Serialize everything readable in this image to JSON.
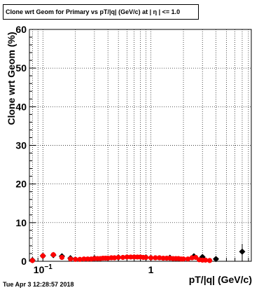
{
  "title": "Clone wrt Geom for Primary vs pT/|q| (GeV/c) at | η | <= 1.0",
  "timestamp": "Tue Apr  3 12:28:57 2018",
  "colors": {
    "series_a": "#000000",
    "series_b": "#ff0000",
    "grid": "#000000"
  },
  "chart_data": {
    "type": "scatter",
    "title": "Clone wrt Geom for Primary vs pT/|q| (GeV/c) at | η | <= 1.0",
    "xlabel": "pT/|q| (GeV/c)",
    "ylabel": "Clone wrt Geom (%)",
    "x_scale": "log",
    "xlim": [
      0.075,
      8.5
    ],
    "ylim": [
      0,
      60
    ],
    "x_ticks": [
      {
        "value": 0.1,
        "base": "10",
        "exp": "−1"
      },
      {
        "value": 1,
        "label": "1"
      }
    ],
    "y_ticks": [
      0,
      10,
      20,
      30,
      40,
      50,
      60
    ],
    "grid": true,
    "series": [
      {
        "color": "#000000",
        "marker": "diamond",
        "points": [
          {
            "x": 0.08,
            "y": 0.3
          },
          {
            "x": 0.1,
            "y": 1.4
          },
          {
            "x": 0.125,
            "y": 1.6
          },
          {
            "x": 0.15,
            "y": 1.3
          },
          {
            "x": 0.18,
            "y": 0.8
          },
          {
            "x": 0.3,
            "y": 0.8
          },
          {
            "x": 0.5,
            "y": 1.0
          },
          {
            "x": 0.9,
            "y": 1.0
          },
          {
            "x": 1.5,
            "y": 0.9
          },
          {
            "x": 2.5,
            "y": 1.3
          },
          {
            "x": 3.0,
            "y": 1.1
          },
          {
            "x": 4.0,
            "y": 0.6
          },
          {
            "x": 7.0,
            "y": 2.5,
            "yerr": 2.0
          }
        ]
      },
      {
        "color": "#ff0000",
        "marker": "circle",
        "points": [
          {
            "x": 0.08,
            "y": 0.2
          },
          {
            "x": 0.1,
            "y": 1.4
          },
          {
            "x": 0.125,
            "y": 1.7
          },
          {
            "x": 0.15,
            "y": 1.0
          },
          {
            "x": 0.18,
            "y": 0.6
          },
          {
            "x": 0.2,
            "y": 0.5
          },
          {
            "x": 0.22,
            "y": 0.5
          },
          {
            "x": 0.24,
            "y": 0.6
          },
          {
            "x": 0.26,
            "y": 0.6
          },
          {
            "x": 0.28,
            "y": 0.6
          },
          {
            "x": 0.3,
            "y": 0.7
          },
          {
            "x": 0.32,
            "y": 0.7
          },
          {
            "x": 0.34,
            "y": 0.7
          },
          {
            "x": 0.36,
            "y": 0.8
          },
          {
            "x": 0.38,
            "y": 0.8
          },
          {
            "x": 0.4,
            "y": 0.8
          },
          {
            "x": 0.43,
            "y": 0.9
          },
          {
            "x": 0.46,
            "y": 0.9
          },
          {
            "x": 0.5,
            "y": 1.0
          },
          {
            "x": 0.55,
            "y": 1.0
          },
          {
            "x": 0.6,
            "y": 1.1
          },
          {
            "x": 0.65,
            "y": 1.1
          },
          {
            "x": 0.7,
            "y": 1.1
          },
          {
            "x": 0.75,
            "y": 1.1
          },
          {
            "x": 0.8,
            "y": 1.1
          },
          {
            "x": 0.85,
            "y": 1.0
          },
          {
            "x": 0.9,
            "y": 1.0
          },
          {
            "x": 1.0,
            "y": 0.9
          },
          {
            "x": 1.1,
            "y": 0.9
          },
          {
            "x": 1.2,
            "y": 0.9
          },
          {
            "x": 1.3,
            "y": 0.8
          },
          {
            "x": 1.4,
            "y": 0.8
          },
          {
            "x": 1.5,
            "y": 0.8
          },
          {
            "x": 1.6,
            "y": 0.7
          },
          {
            "x": 1.7,
            "y": 0.7
          },
          {
            "x": 1.8,
            "y": 0.7
          },
          {
            "x": 1.9,
            "y": 0.6
          },
          {
            "x": 2.0,
            "y": 0.6
          },
          {
            "x": 2.2,
            "y": 0.6
          },
          {
            "x": 2.4,
            "y": 0.9
          },
          {
            "x": 2.6,
            "y": 1.0
          },
          {
            "x": 2.8,
            "y": 0.4
          },
          {
            "x": 3.0,
            "y": 0.3
          },
          {
            "x": 3.2,
            "y": 0.3
          },
          {
            "x": 3.5,
            "y": 0.2
          }
        ]
      }
    ]
  }
}
